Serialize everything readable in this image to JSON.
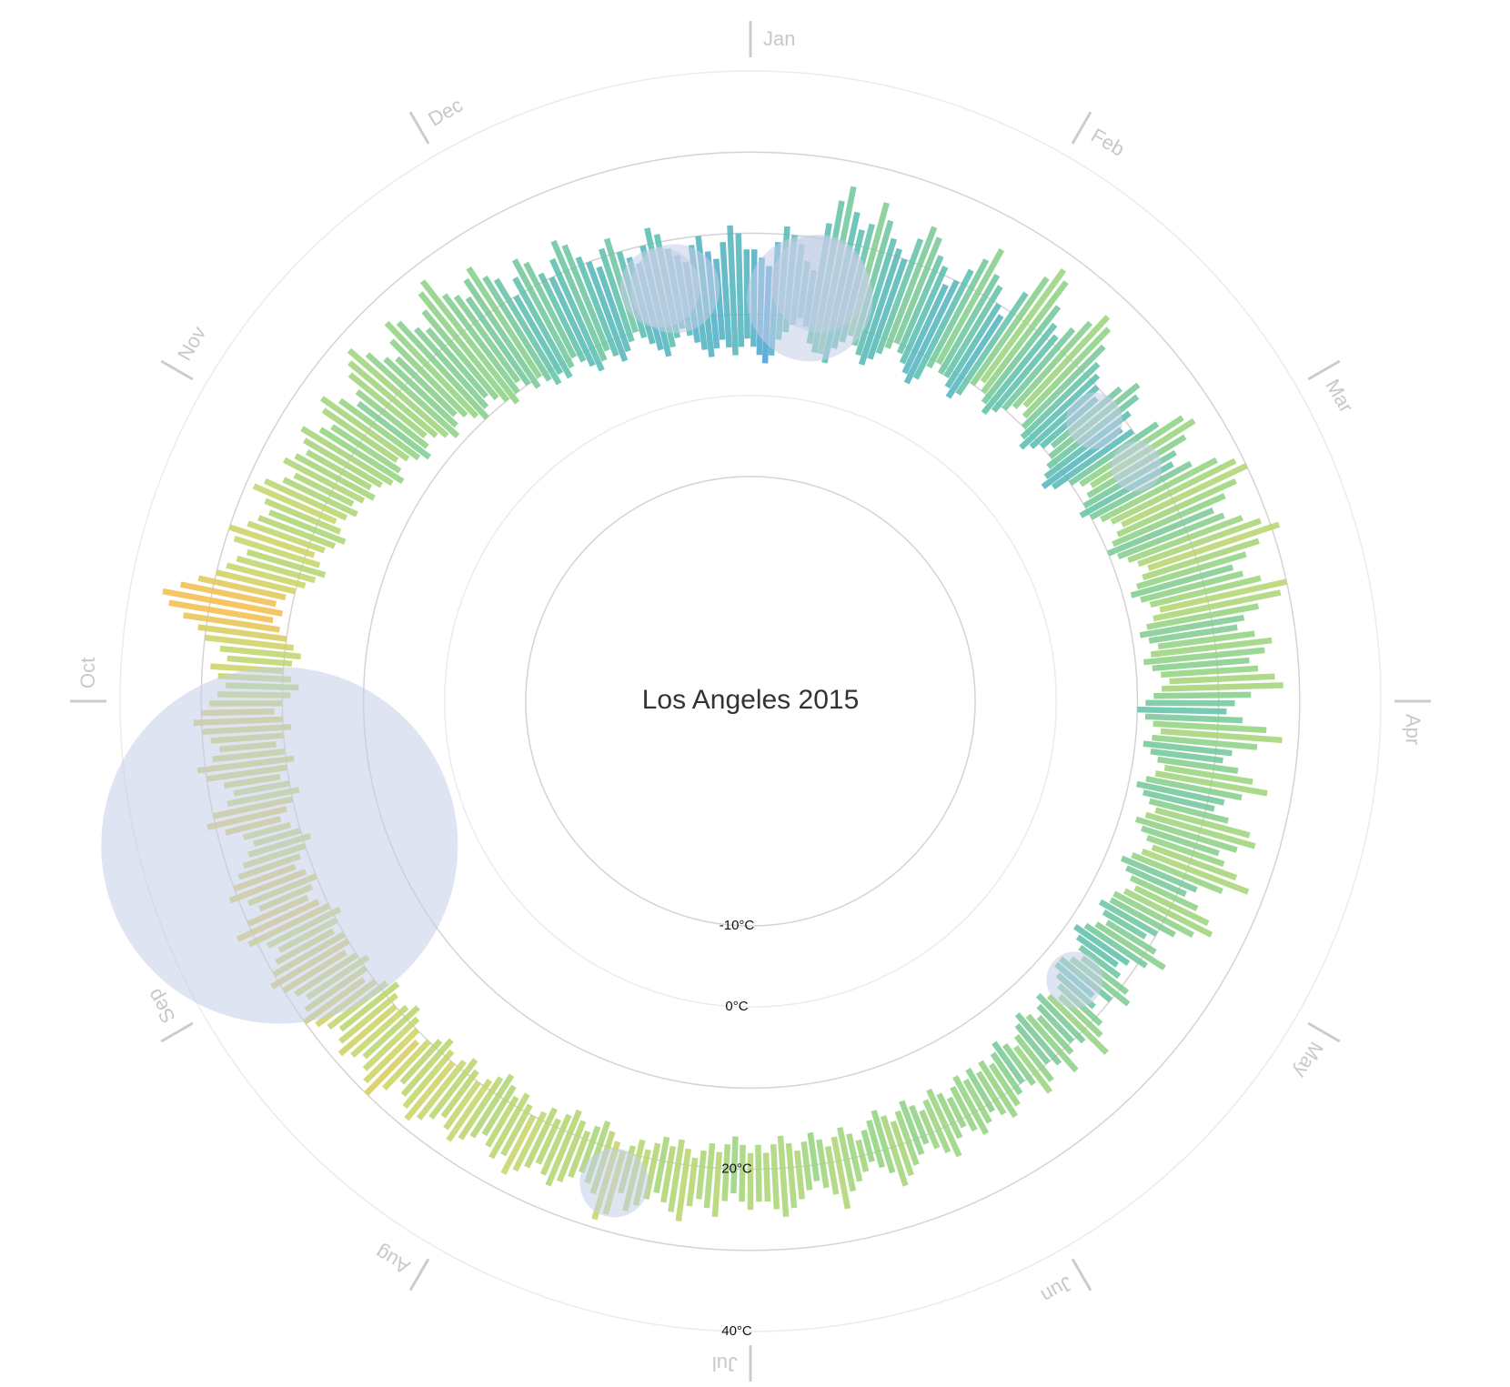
{
  "chart_data": {
    "type": "radial-range",
    "title": "Los Angeles 2015",
    "months": [
      "Jan",
      "Feb",
      "Mar",
      "Apr",
      "May",
      "Jun",
      "Jul",
      "Aug",
      "Sep",
      "Oct",
      "Nov",
      "Dec"
    ],
    "rlim": [
      -37.7,
      40
    ],
    "rticks": [
      {
        "value": -10,
        "label": "-10°C"
      },
      {
        "value": 0,
        "label": "0°C"
      },
      {
        "value": 10,
        "label": null
      },
      {
        "value": 20,
        "label": "20°C"
      },
      {
        "value": 30,
        "label": null
      },
      {
        "value": 40,
        "label": "40°C"
      }
    ],
    "color_stops": [
      "#4aa3d8",
      "#5bbfb0",
      "#98d57f",
      "#c9d66a",
      "#f5bd4f"
    ],
    "rain_color": "#c3cde6",
    "low": [
      6,
      5,
      4,
      5,
      7,
      8,
      9,
      10,
      9,
      7,
      6,
      6,
      5,
      7,
      8,
      9,
      8,
      7,
      6,
      7,
      8,
      9,
      10,
      9,
      8,
      7,
      6,
      7,
      9,
      10,
      9,
      9,
      8,
      7,
      8,
      10,
      11,
      10,
      9,
      8,
      9,
      10,
      11,
      12,
      11,
      10,
      9,
      8,
      9,
      10,
      11,
      10,
      9,
      8,
      7,
      8,
      10,
      11,
      12,
      11,
      10,
      9,
      10,
      11,
      12,
      13,
      12,
      11,
      10,
      11,
      12,
      13,
      14,
      13,
      12,
      11,
      12,
      13,
      14,
      13,
      12,
      11,
      12,
      13,
      12,
      11,
      12,
      13,
      14,
      13,
      12,
      11,
      10,
      11,
      12,
      13,
      12,
      11,
      12,
      13,
      14,
      13,
      12,
      11,
      12,
      13,
      14,
      13,
      12,
      13,
      14,
      15,
      14,
      13,
      12,
      13,
      14,
      15,
      14,
      13,
      13,
      12,
      13,
      14,
      13,
      12,
      11,
      12,
      13,
      14,
      13,
      12,
      12,
      13,
      14,
      15,
      14,
      13,
      14,
      15,
      14,
      13,
      14,
      15,
      16,
      15,
      14,
      15,
      16,
      15,
      16,
      15,
      16,
      15,
      16,
      17,
      16,
      15,
      16,
      17,
      16,
      15,
      16,
      17,
      16,
      15,
      16,
      17,
      18,
      17,
      16,
      17,
      18,
      17,
      16,
      17,
      18,
      17,
      16,
      17,
      18,
      17,
      18,
      17,
      16,
      17,
      18,
      17,
      18,
      19,
      18,
      17,
      18,
      17,
      18,
      19,
      18,
      19,
      20,
      19,
      18,
      17,
      18,
      19,
      18,
      17,
      18,
      19,
      18,
      19,
      20,
      19,
      18,
      19,
      18,
      17,
      18,
      19,
      20,
      19,
      18,
      19,
      20,
      19,
      18,
      19,
      20,
      21,
      20,
      19,
      18,
      19,
      20,
      19,
      18,
      19,
      20,
      21,
      20,
      19,
      20,
      21,
      20,
      20,
      21,
      20,
      19,
      20,
      21,
      22,
      21,
      20,
      21,
      22,
      21,
      20,
      19,
      20,
      21,
      22,
      21,
      20,
      19,
      20,
      21,
      20,
      19,
      20,
      21,
      20,
      19,
      20,
      21,
      20,
      19,
      18,
      19,
      20,
      19,
      18,
      19,
      20,
      21,
      22,
      21,
      22,
      21,
      20,
      19,
      18,
      17,
      18,
      19,
      18,
      17,
      16,
      17,
      18,
      17,
      16,
      17,
      16,
      15,
      16,
      15,
      14,
      13,
      14,
      15,
      14,
      13,
      12,
      13,
      14,
      13,
      12,
      11,
      12,
      13,
      12,
      11,
      10,
      11,
      12,
      11,
      10,
      9,
      10,
      11,
      10,
      9,
      10,
      9,
      8,
      9,
      8,
      9,
      10,
      9,
      8,
      7,
      8,
      9,
      8,
      7,
      8,
      9,
      10,
      9,
      8,
      7,
      6,
      7,
      8,
      9,
      8,
      7,
      6,
      5,
      6,
      7,
      6,
      5,
      6,
      7
    ],
    "high": [
      18,
      17,
      16,
      19,
      21,
      20,
      19,
      17,
      16,
      22,
      25,
      27,
      24,
      22,
      23,
      26,
      24,
      22,
      21,
      20,
      23,
      25,
      24,
      22,
      21,
      19,
      20,
      22,
      24,
      26,
      23,
      22,
      20,
      19,
      23,
      26,
      28,
      27,
      24,
      22,
      21,
      23,
      25,
      27,
      26,
      24,
      22,
      21,
      20,
      19,
      22,
      24,
      23,
      21,
      19,
      20,
      23,
      26,
      27,
      25,
      23,
      22,
      24,
      27,
      29,
      30,
      28,
      26,
      24,
      25,
      27,
      29,
      31,
      28,
      26,
      24,
      25,
      27,
      30,
      29,
      26,
      24,
      23,
      25,
      27,
      26,
      24,
      25,
      27,
      28,
      24,
      22,
      21,
      23,
      26,
      28,
      25,
      22,
      21,
      23,
      25,
      27,
      24,
      22,
      21,
      23,
      26,
      27,
      25,
      23,
      24,
      26,
      28,
      25,
      22,
      21,
      23,
      25,
      26,
      24,
      22,
      20,
      19,
      21,
      23,
      21,
      19,
      18,
      19,
      21,
      22,
      20,
      18,
      19,
      21,
      22,
      24,
      21,
      20,
      21,
      23,
      21,
      20,
      22,
      23,
      21,
      20,
      21,
      22,
      23,
      22,
      21,
      22,
      23,
      22,
      21,
      22,
      24,
      23,
      22,
      21,
      22,
      23,
      24,
      25,
      23,
      22,
      21,
      22,
      23,
      24,
      26,
      24,
      23,
      22,
      23,
      24,
      25,
      26,
      25,
      24,
      24,
      25,
      24,
      23,
      24,
      26,
      25,
      24,
      25,
      27,
      26,
      25,
      24,
      25,
      26,
      27,
      25,
      28,
      29,
      26,
      25,
      24,
      25,
      26,
      27,
      26,
      25,
      26,
      27,
      28,
      26,
      27,
      26,
      25,
      26,
      27,
      28,
      27,
      26,
      27,
      28,
      29,
      28,
      27,
      26,
      28,
      30,
      29,
      28,
      27,
      28,
      29,
      28,
      27,
      28,
      29,
      30,
      29,
      28,
      29,
      30,
      31,
      30,
      29,
      28,
      29,
      31,
      32,
      30,
      28,
      29,
      31,
      30,
      29,
      28,
      27,
      26,
      27,
      29,
      31,
      30,
      28,
      27,
      28,
      30,
      31,
      29,
      28,
      29,
      30,
      31,
      30,
      29,
      28,
      27,
      28,
      29,
      27,
      28,
      30,
      31,
      33,
      35,
      36,
      34,
      32,
      30,
      29,
      28,
      27,
      29,
      30,
      28,
      27,
      26,
      27,
      29,
      28,
      26,
      25,
      27,
      26,
      25,
      26,
      27,
      25,
      24,
      26,
      27,
      25,
      23,
      24,
      26,
      27,
      28,
      26,
      24,
      23,
      25,
      27,
      26,
      24,
      23,
      25,
      27,
      28,
      25,
      24,
      23,
      25,
      26,
      24,
      23,
      20,
      22,
      24,
      23,
      21,
      20,
      22,
      24,
      23,
      21,
      20,
      19,
      21,
      22,
      20,
      19,
      18,
      20,
      22,
      21,
      19,
      18,
      17,
      19,
      20,
      18,
      17,
      19,
      21,
      20,
      18
    ],
    "rain_days": [
      9,
      10,
      52,
      60,
      133,
      199,
      257,
      353,
      355
    ],
    "rain": [
      5,
      3,
      1,
      0.8,
      1,
      1.5,
      40,
      2,
      2.5
    ]
  }
}
